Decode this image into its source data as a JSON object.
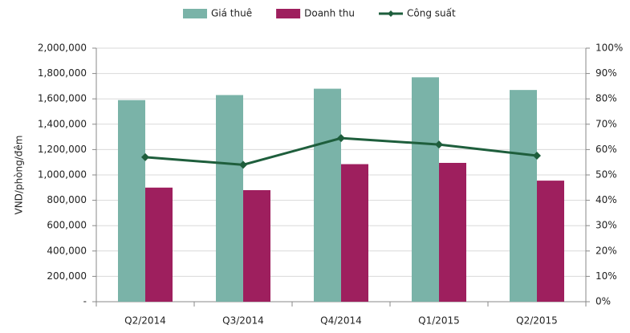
{
  "chart_data": {
    "type": "bar_line",
    "categories": [
      "Q2/2014",
      "Q3/2014",
      "Q4/2014",
      "Q1/2015",
      "Q2/2015"
    ],
    "y_label": "VND/phòng/đêm",
    "series": [
      {
        "name": "Giá thuê",
        "type": "bar",
        "color": "#7ab3a8",
        "values": [
          1590000,
          1630000,
          1680000,
          1770000,
          1670000
        ]
      },
      {
        "name": "Doanh thu",
        "type": "bar",
        "color": "#9e1f5e",
        "values": [
          900000,
          880000,
          1085000,
          1095000,
          955000
        ]
      },
      {
        "name": "Công suất",
        "type": "line",
        "axis": "y2",
        "color": "#1e5e3c",
        "values": [
          57,
          54,
          64.5,
          62,
          57.6
        ]
      }
    ],
    "ylim": [
      0,
      2000000
    ],
    "yticks": [
      {
        "value": 0,
        "label": "-"
      },
      {
        "value": 200000,
        "label": "200,000"
      },
      {
        "value": 400000,
        "label": "400,000"
      },
      {
        "value": 600000,
        "label": "600,000"
      },
      {
        "value": 800000,
        "label": "800,000"
      },
      {
        "value": 1000000,
        "label": "1,000,000"
      },
      {
        "value": 1200000,
        "label": "1,200,000"
      },
      {
        "value": 1400000,
        "label": "1,400,000"
      },
      {
        "value": 1600000,
        "label": "1,600,000"
      },
      {
        "value": 1800000,
        "label": "1,800,000"
      },
      {
        "value": 2000000,
        "label": "2,000,000"
      }
    ],
    "y2lim": [
      0,
      100
    ],
    "y2ticks": [
      {
        "value": 0,
        "label": "0%"
      },
      {
        "value": 10,
        "label": "10%"
      },
      {
        "value": 20,
        "label": "20%"
      },
      {
        "value": 30,
        "label": "30%"
      },
      {
        "value": 40,
        "label": "40%"
      },
      {
        "value": 50,
        "label": "50%"
      },
      {
        "value": 60,
        "label": "60%"
      },
      {
        "value": 70,
        "label": "70%"
      },
      {
        "value": 80,
        "label": "80%"
      },
      {
        "value": 90,
        "label": "90%"
      },
      {
        "value": 100,
        "label": "100%"
      }
    ],
    "grid": true,
    "legend": "top"
  }
}
